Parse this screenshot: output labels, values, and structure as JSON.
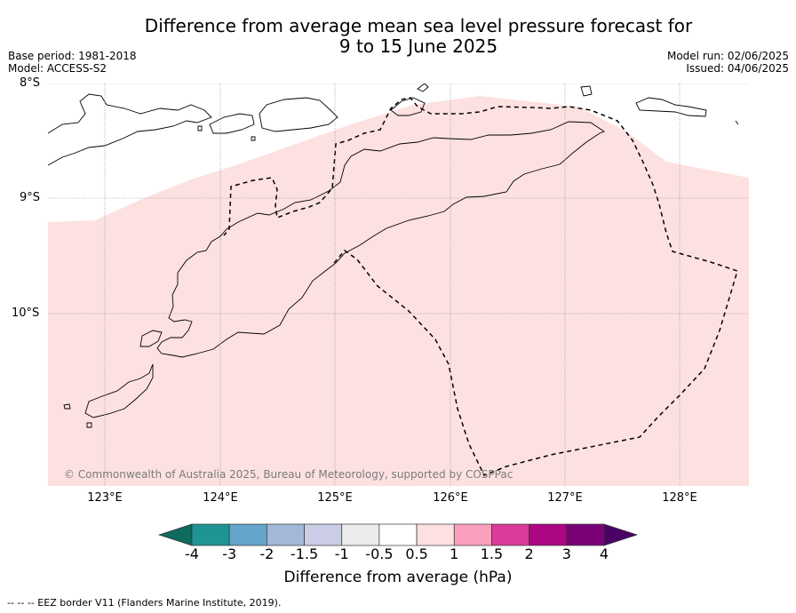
{
  "title_line1": "Difference from average mean sea level pressure forecast for",
  "title_line2": "9 to 15 June 2025",
  "base_period": "Base period: 1981-2018",
  "model": "Model: ACCESS-S2",
  "model_run": "Model run: 02/06/2025",
  "issued": "Issued: 04/06/2025",
  "lat_labels": [
    "8°S",
    "9°S",
    "10°S"
  ],
  "lon_labels": [
    "123°E",
    "124°E",
    "125°E",
    "126°E",
    "127°E",
    "128°E"
  ],
  "copyright": "© Commonwealth of Australia 2025, Bureau of Meteorology, supported by COSPPac",
  "colorbar": {
    "title": "Difference from average (hPa)",
    "ticks": [
      "-4",
      "-3",
      "-2",
      "-1.5",
      "-1",
      "-0.5",
      "0.5",
      "1",
      "1.5",
      "2",
      "3",
      "4"
    ],
    "colors": [
      "#0f6b5c",
      "#1f9494",
      "#64a5cc",
      "#a3b7d9",
      "#cbcde6",
      "#ececec",
      "#ffffff",
      "#fde1e1",
      "#f99fbd",
      "#db3b9a",
      "#ad0684",
      "#7a0278",
      "#4a0364"
    ]
  },
  "footnote": "--  --  -- EEZ border V11 (Flanders Marine Institute, 2019)."
}
